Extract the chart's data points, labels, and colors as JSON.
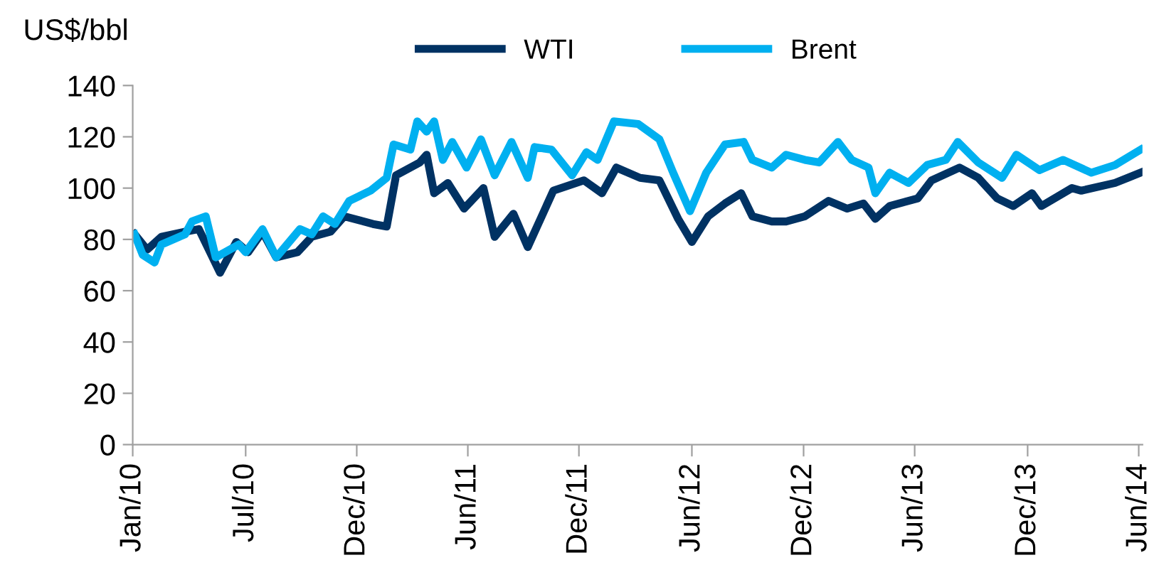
{
  "chart_data": {
    "type": "line",
    "ylabel": "US$/bbl",
    "ylim": [
      0,
      140
    ],
    "yticks": [
      0,
      20,
      40,
      60,
      80,
      100,
      120,
      140
    ],
    "xlim": [
      "2010-01-01",
      "2014-06-07"
    ],
    "xticks": [
      {
        "value": "2010-01-01",
        "label": "Jan/10"
      },
      {
        "value": "2010-07-01",
        "label": "Jul/10"
      },
      {
        "value": "2010-12-26",
        "label": "Dec/10"
      },
      {
        "value": "2011-06-22",
        "label": "Jun/11"
      },
      {
        "value": "2011-12-17",
        "label": "Dec/11"
      },
      {
        "value": "2012-06-15",
        "label": "Jun/12"
      },
      {
        "value": "2012-12-11",
        "label": "Dec/12"
      },
      {
        "value": "2013-06-07",
        "label": "Jun/13"
      },
      {
        "value": "2013-12-05",
        "label": "Dec/13"
      },
      {
        "value": "2014-06-01",
        "label": "Jun/14"
      }
    ],
    "grid": false,
    "legend": "top",
    "line_style": "solid",
    "marker": "none",
    "series": [
      {
        "name": "WTI",
        "color": "#003263",
        "x": [
          "2010-01-04",
          "2010-01-24",
          "2010-02-16",
          "2010-03-26",
          "2010-04-17",
          "2010-05-21",
          "2010-06-16",
          "2010-07-05",
          "2010-07-28",
          "2010-08-19",
          "2010-09-22",
          "2010-10-15",
          "2010-11-14",
          "2010-12-06",
          "2011-01-21",
          "2011-02-12",
          "2011-02-27",
          "2011-04-06",
          "2011-04-17",
          "2011-04-29",
          "2011-05-21",
          "2011-06-16",
          "2011-07-17",
          "2011-08-04",
          "2011-09-03",
          "2011-09-26",
          "2011-11-06",
          "2011-12-25",
          "2012-01-23",
          "2012-02-15",
          "2012-03-24",
          "2012-04-24",
          "2012-05-24",
          "2012-06-15",
          "2012-07-11",
          "2012-08-07",
          "2012-09-02",
          "2012-09-20",
          "2012-10-21",
          "2012-11-13",
          "2012-12-13",
          "2013-01-20",
          "2013-02-19",
          "2013-03-17",
          "2013-04-05",
          "2013-04-28",
          "2013-06-12",
          "2013-07-04",
          "2013-08-18",
          "2013-09-17",
          "2013-10-17",
          "2013-11-12",
          "2013-12-12",
          "2013-12-27",
          "2014-02-14",
          "2014-03-01",
          "2014-04-24",
          "2014-06-04"
        ],
        "values": [
          82,
          76,
          81,
          83,
          84,
          67,
          79,
          75,
          83,
          73,
          75,
          81,
          83,
          89,
          86,
          85,
          105,
          110,
          113,
          98,
          102,
          92,
          100,
          81,
          90,
          77,
          99,
          103,
          98,
          108,
          104,
          103,
          88,
          79,
          89,
          94,
          98,
          89,
          87,
          87,
          89,
          95,
          92,
          94,
          88,
          93,
          96,
          103,
          108,
          104,
          96,
          93,
          98,
          93,
          100,
          99,
          102,
          106
        ]
      },
      {
        "name": "Brent",
        "color": "#00b0f0",
        "x": [
          "2010-01-04",
          "2010-01-17",
          "2010-02-05",
          "2010-02-16",
          "2010-03-26",
          "2010-04-06",
          "2010-04-28",
          "2010-05-14",
          "2010-06-20",
          "2010-07-01",
          "2010-07-28",
          "2010-08-19",
          "2010-09-26",
          "2010-10-15",
          "2010-11-02",
          "2010-11-21",
          "2010-12-14",
          "2011-01-17",
          "2011-02-12",
          "2011-02-23",
          "2011-03-22",
          "2011-04-02",
          "2011-04-17",
          "2011-04-29",
          "2011-05-13",
          "2011-05-28",
          "2011-06-20",
          "2011-07-13",
          "2011-08-04",
          "2011-08-31",
          "2011-09-26",
          "2011-10-07",
          "2011-11-03",
          "2011-12-06",
          "2011-12-29",
          "2012-01-16",
          "2012-02-11",
          "2012-03-21",
          "2012-04-24",
          "2012-05-16",
          "2012-06-12",
          "2012-07-08",
          "2012-08-07",
          "2012-09-06",
          "2012-09-20",
          "2012-10-21",
          "2012-11-13",
          "2012-12-13",
          "2013-01-05",
          "2013-02-04",
          "2013-02-26",
          "2013-03-25",
          "2013-04-05",
          "2013-04-28",
          "2013-05-28",
          "2013-06-27",
          "2013-07-27",
          "2013-08-15",
          "2013-09-17",
          "2013-10-25",
          "2013-11-17",
          "2013-12-24",
          "2014-01-31",
          "2014-03-17",
          "2014-04-24",
          "2014-06-04"
        ],
        "values": [
          82,
          74,
          71,
          78,
          82,
          87,
          89,
          73,
          78,
          75,
          84,
          73,
          84,
          82,
          89,
          86,
          95,
          99,
          104,
          117,
          115,
          126,
          122,
          126,
          111,
          118,
          108,
          119,
          105,
          118,
          104,
          116,
          115,
          105,
          114,
          111,
          126,
          125,
          119,
          106,
          91,
          106,
          117,
          118,
          111,
          108,
          113,
          111,
          110,
          118,
          111,
          108,
          98,
          106,
          102,
          109,
          111,
          118,
          110,
          104,
          113,
          107,
          111,
          106,
          109,
          115
        ]
      }
    ]
  }
}
